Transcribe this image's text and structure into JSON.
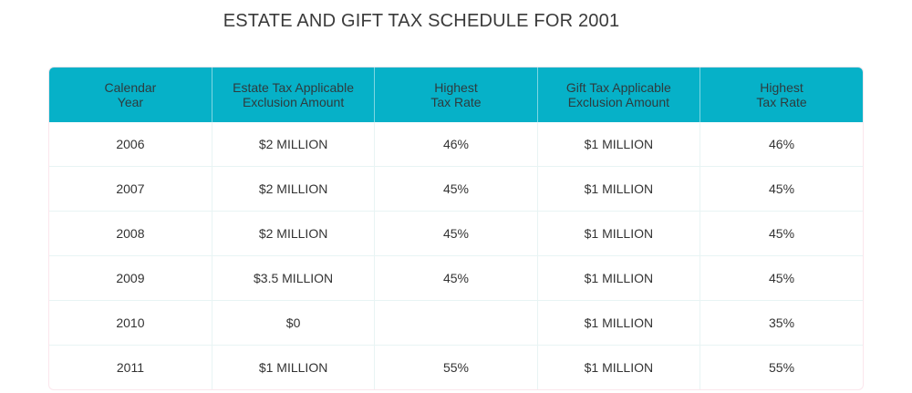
{
  "title": "ESTATE AND GIFT TAX SCHEDULE FOR 2001",
  "colors": {
    "header_bg": "#06b1c8"
  },
  "table": {
    "headers": [
      [
        "Calendar",
        "Year"
      ],
      [
        "Estate Tax Applicable",
        "Exclusion Amount"
      ],
      [
        "Highest",
        "Tax Rate"
      ],
      [
        "Gift Tax Applicable",
        "Exclusion Amount"
      ],
      [
        "Highest",
        "Tax Rate"
      ]
    ],
    "rows": [
      [
        "2006",
        "$2 MILLION",
        "46%",
        "$1 MILLION",
        "46%"
      ],
      [
        "2007",
        "$2 MILLION",
        "45%",
        "$1 MILLION",
        "45%"
      ],
      [
        "2008",
        "$2 MILLION",
        "45%",
        "$1 MILLION",
        "45%"
      ],
      [
        "2009",
        "$3.5 MILLION",
        "45%",
        "$1 MILLION",
        "45%"
      ],
      [
        "2010",
        "$0",
        "",
        "$1 MILLION",
        "35%"
      ],
      [
        "2011",
        "$1 MILLION",
        "55%",
        "$1 MILLION",
        "55%"
      ]
    ]
  }
}
